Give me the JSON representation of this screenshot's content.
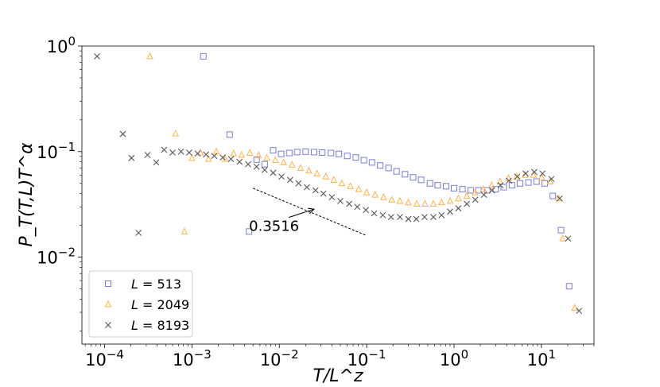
{
  "chart_data": {
    "type": "scatter",
    "title": "",
    "xlabel": "T/L^z",
    "ylabel": "P_T(T,L)T^α",
    "xscale": "log",
    "yscale": "log",
    "xlim": [
      5.5e-05,
      40
    ],
    "ylim": [
      0.0015,
      1.0
    ],
    "grid": false,
    "legend_position": "lower-left",
    "x_ticks": [
      {
        "value": 0.0001,
        "base": "10",
        "exp": "−4"
      },
      {
        "value": 0.001,
        "base": "10",
        "exp": "−3"
      },
      {
        "value": 0.01,
        "base": "10",
        "exp": "−2"
      },
      {
        "value": 0.1,
        "base": "10",
        "exp": "−1"
      },
      {
        "value": 1,
        "base": "10",
        "exp": "0"
      },
      {
        "value": 10,
        "base": "10",
        "exp": "1"
      }
    ],
    "y_ticks": [
      {
        "value": 1,
        "base": "10",
        "exp": "0"
      },
      {
        "value": 0.1,
        "base": "10",
        "exp": "−1"
      },
      {
        "value": 0.01,
        "base": "10",
        "exp": "−2"
      }
    ],
    "series": [
      {
        "name": "L = 513",
        "label_var": "L",
        "label_val": "513",
        "marker": "square",
        "color": "#7b7bdb",
        "points": [
          [
            0.00135,
            0.8
          ],
          [
            0.0027,
            0.145
          ],
          [
            0.0045,
            0.0175
          ],
          [
            0.0055,
            0.084
          ],
          [
            0.0068,
            0.076
          ],
          [
            0.0085,
            0.103
          ],
          [
            0.0105,
            0.095
          ],
          [
            0.013,
            0.097
          ],
          [
            0.016,
            0.099
          ],
          [
            0.02,
            0.1
          ],
          [
            0.025,
            0.099
          ],
          [
            0.031,
            0.098
          ],
          [
            0.039,
            0.097
          ],
          [
            0.048,
            0.095
          ],
          [
            0.06,
            0.091
          ],
          [
            0.075,
            0.088
          ],
          [
            0.093,
            0.083
          ],
          [
            0.115,
            0.079
          ],
          [
            0.143,
            0.074
          ],
          [
            0.178,
            0.07
          ],
          [
            0.22,
            0.065
          ],
          [
            0.275,
            0.061
          ],
          [
            0.34,
            0.057
          ],
          [
            0.42,
            0.054
          ],
          [
            0.53,
            0.05
          ],
          [
            0.65,
            0.048
          ],
          [
            0.81,
            0.047
          ],
          [
            1.0,
            0.045
          ],
          [
            1.25,
            0.044
          ],
          [
            1.55,
            0.043
          ],
          [
            1.9,
            0.043
          ],
          [
            2.4,
            0.043
          ],
          [
            3.0,
            0.044
          ],
          [
            3.7,
            0.046
          ],
          [
            4.6,
            0.048
          ],
          [
            5.7,
            0.05
          ],
          [
            7.1,
            0.051
          ],
          [
            8.8,
            0.052
          ],
          [
            10.9,
            0.05
          ],
          [
            13.5,
            0.038
          ],
          [
            16.8,
            0.018
          ],
          [
            20.8,
            0.0053
          ]
        ]
      },
      {
        "name": "L = 2049",
        "label_var": "L",
        "label_val": "2049",
        "marker": "triangle",
        "color": "#ffb347",
        "points": [
          [
            0.00033,
            0.8
          ],
          [
            0.00065,
            0.148
          ],
          [
            0.00082,
            0.0175
          ],
          [
            0.001,
            0.087
          ],
          [
            0.00125,
            0.098
          ],
          [
            0.00155,
            0.085
          ],
          [
            0.0019,
            0.1
          ],
          [
            0.0024,
            0.085
          ],
          [
            0.003,
            0.096
          ],
          [
            0.0037,
            0.093
          ],
          [
            0.0046,
            0.097
          ],
          [
            0.0058,
            0.092
          ],
          [
            0.0072,
            0.087
          ],
          [
            0.009,
            0.083
          ],
          [
            0.0112,
            0.079
          ],
          [
            0.014,
            0.075
          ],
          [
            0.0175,
            0.07
          ],
          [
            0.0218,
            0.066
          ],
          [
            0.027,
            0.062
          ],
          [
            0.034,
            0.058
          ],
          [
            0.042,
            0.054
          ],
          [
            0.052,
            0.05
          ],
          [
            0.065,
            0.047
          ],
          [
            0.081,
            0.044
          ],
          [
            0.1,
            0.041
          ],
          [
            0.125,
            0.039
          ],
          [
            0.156,
            0.037
          ],
          [
            0.194,
            0.035
          ],
          [
            0.24,
            0.034
          ],
          [
            0.3,
            0.033
          ],
          [
            0.375,
            0.032
          ],
          [
            0.465,
            0.032
          ],
          [
            0.58,
            0.032
          ],
          [
            0.72,
            0.033
          ],
          [
            0.9,
            0.034
          ],
          [
            1.12,
            0.036
          ],
          [
            1.4,
            0.038
          ],
          [
            1.74,
            0.041
          ],
          [
            2.16,
            0.044
          ],
          [
            2.7,
            0.048
          ],
          [
            3.36,
            0.052
          ],
          [
            4.2,
            0.056
          ],
          [
            5.2,
            0.058
          ],
          [
            6.5,
            0.06
          ],
          [
            8.1,
            0.06
          ],
          [
            10.1,
            0.057
          ],
          [
            12.6,
            0.052
          ],
          [
            15.7,
            0.036
          ],
          [
            17.5,
            0.015
          ],
          [
            24.0,
            0.0033
          ]
        ]
      },
      {
        "name": "L = 8193",
        "label_var": "L",
        "label_val": "8193",
        "marker": "x",
        "color": "#555555",
        "points": [
          [
            8.2e-05,
            0.8
          ],
          [
            0.000162,
            0.147
          ],
          [
            0.000203,
            0.087
          ],
          [
            0.000245,
            0.017
          ],
          [
            0.00031,
            0.093
          ],
          [
            0.00039,
            0.079
          ],
          [
            0.00048,
            0.104
          ],
          [
            0.0006,
            0.098
          ],
          [
            0.00075,
            0.1
          ],
          [
            0.00093,
            0.098
          ],
          [
            0.00116,
            0.096
          ],
          [
            0.00145,
            0.094
          ],
          [
            0.0018,
            0.091
          ],
          [
            0.00225,
            0.088
          ],
          [
            0.0028,
            0.085
          ],
          [
            0.0035,
            0.08
          ],
          [
            0.0044,
            0.076
          ],
          [
            0.0055,
            0.072
          ],
          [
            0.0068,
            0.067
          ],
          [
            0.0085,
            0.063
          ],
          [
            0.0106,
            0.058
          ],
          [
            0.0133,
            0.054
          ],
          [
            0.0166,
            0.05
          ],
          [
            0.0207,
            0.046
          ],
          [
            0.026,
            0.043
          ],
          [
            0.032,
            0.04
          ],
          [
            0.04,
            0.037
          ],
          [
            0.05,
            0.034
          ],
          [
            0.063,
            0.032
          ],
          [
            0.078,
            0.03
          ],
          [
            0.098,
            0.028
          ],
          [
            0.122,
            0.026
          ],
          [
            0.153,
            0.025
          ],
          [
            0.19,
            0.024
          ],
          [
            0.24,
            0.024
          ],
          [
            0.3,
            0.023
          ],
          [
            0.37,
            0.023
          ],
          [
            0.46,
            0.024
          ],
          [
            0.58,
            0.024
          ],
          [
            0.72,
            0.025
          ],
          [
            0.9,
            0.027
          ],
          [
            1.12,
            0.029
          ],
          [
            1.4,
            0.032
          ],
          [
            1.75,
            0.035
          ],
          [
            2.2,
            0.039
          ],
          [
            2.72,
            0.043
          ],
          [
            3.4,
            0.048
          ],
          [
            4.25,
            0.053
          ],
          [
            5.3,
            0.058
          ],
          [
            6.6,
            0.062
          ],
          [
            8.3,
            0.064
          ],
          [
            10.3,
            0.062
          ],
          [
            13.0,
            0.055
          ],
          [
            16.2,
            0.036
          ],
          [
            20.2,
            0.015
          ],
          [
            27.0,
            0.0031
          ]
        ]
      }
    ],
    "reference_line": {
      "x": [
        0.005,
        0.1
      ],
      "y": [
        0.045,
        0.016
      ]
    },
    "annotation": {
      "text": "0.3516",
      "text_at": [
        0.0045,
        0.02
      ],
      "arrow_to": [
        0.025,
        0.0285
      ]
    }
  }
}
